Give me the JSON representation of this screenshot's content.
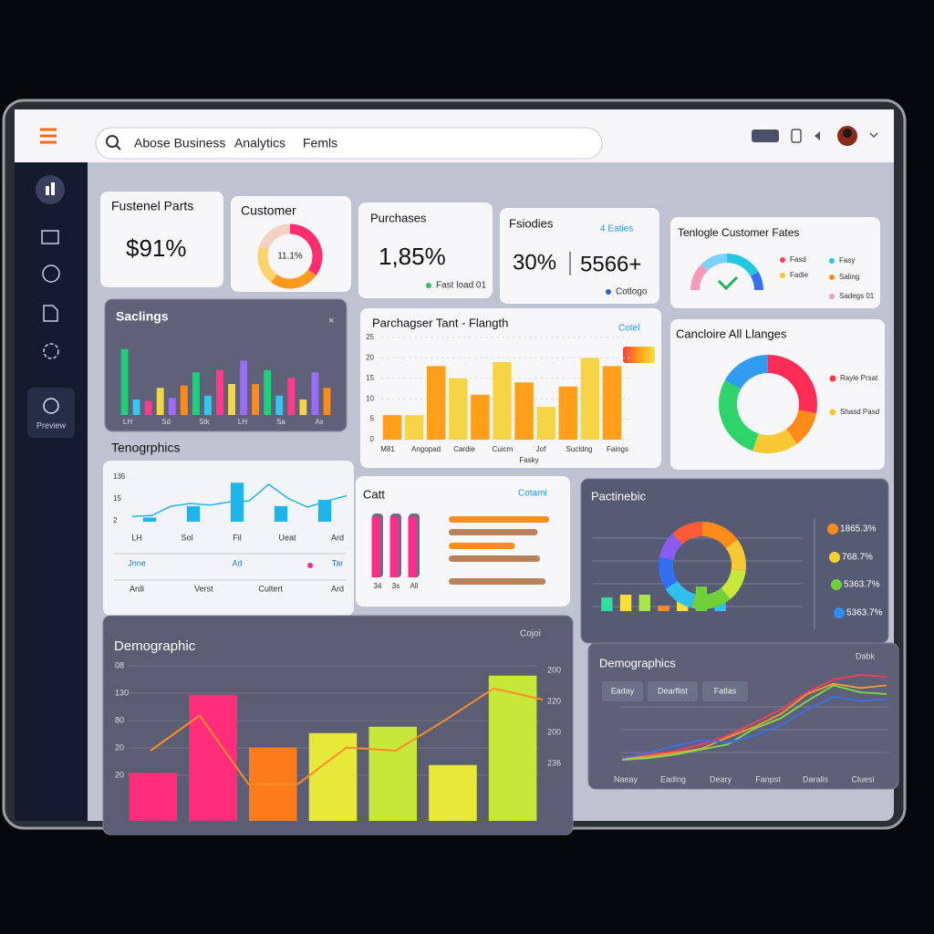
{
  "header": {
    "search": [
      "Abose Business",
      "Analytics",
      "Femls"
    ]
  },
  "sidebar": {
    "label": "Preview"
  },
  "kpis": [
    {
      "title": "Fustenel Parts",
      "value": "$91%"
    },
    {
      "title": "Customer",
      "center": "11.1%",
      "values": [
        35,
        25,
        20,
        20
      ],
      "colors": [
        "#ff2d6f",
        "#ff9a1f",
        "#ffd36b",
        "#f3d2c0"
      ]
    },
    {
      "title": "Purchases",
      "value": "1,85%",
      "note": "Fast load 01"
    },
    {
      "title": "Fsiodies",
      "link": "4 Eaties",
      "value": "30%",
      "value2": "5566+",
      "note": "Cotlogo"
    },
    {
      "title": "Tenlogle Customer Fates",
      "legend": [
        {
          "name": "Fasd",
          "color": "#ff3b6b"
        },
        {
          "name": "Fasy",
          "color": "#22c7e0"
        },
        {
          "name": "Fadie",
          "color": "#f7c833"
        },
        {
          "name": "Saling",
          "color": "#ff8c1a"
        },
        {
          "name": "Sadegs 01",
          "color": "#f59ab8"
        }
      ]
    }
  ],
  "saclings": {
    "title": "Saclings",
    "ylim": [
      0,
      100
    ],
    "values": [
      85,
      20,
      18,
      35,
      22,
      38,
      55,
      25,
      58,
      40,
      70,
      40,
      58,
      25,
      48,
      20,
      55,
      35
    ],
    "colors": [
      "#1fd07a",
      "#34c8f0",
      "#ff3b8b",
      "#f5d547",
      "#9b6cf7",
      "#ff8c1a"
    ],
    "xlabels": [
      "LH",
      "Sd",
      "Stk",
      "LH",
      "Sa",
      "Ax"
    ]
  },
  "purchaser": {
    "title": "Parchagser Tant - Flangth",
    "legend": "Cotel",
    "ylim": [
      0,
      25
    ],
    "yticks": [
      0,
      5,
      10,
      15,
      20,
      25
    ],
    "values": [
      6,
      6,
      18,
      15,
      11,
      19,
      14,
      8,
      13,
      20,
      18
    ],
    "colors": [
      "#ff9f1a",
      "#f5d547"
    ],
    "xlabels": [
      "M81",
      "Angopad",
      "Cardie",
      "Cuicm",
      "Jof",
      "Sucldng",
      "Faings"
    ],
    "xlabel": "Fasky"
  },
  "allranges": {
    "title": "Cancloire All Llanges",
    "values": [
      28,
      12,
      15,
      28,
      17
    ],
    "colors": [
      "#ff2d55",
      "#ff8c1a",
      "#f7c833",
      "#2ed46a",
      "#2f9cf0"
    ],
    "legend": [
      {
        "name": "Rayle Prsat",
        "color": "#ff3b3b"
      },
      {
        "name": "Shasd Pasd",
        "color": "#f7c833"
      }
    ]
  },
  "tenographics": {
    "title": "Tenogrphics",
    "ylabels": [
      "135",
      "15",
      "2"
    ],
    "ylim": [
      0,
      100
    ],
    "line": [
      10,
      12,
      30,
      35,
      32,
      38,
      40,
      72,
      45,
      28,
      40,
      50
    ],
    "bars": [
      8,
      30,
      75,
      30,
      42
    ],
    "color": "#1eb6ea",
    "rows": [
      [
        "LH",
        "Sol",
        "Fil",
        "Ueat",
        "Ard"
      ],
      [
        "Jnne",
        "Ad",
        "Tar"
      ],
      [
        "Ardi",
        "Verst",
        "Cultert",
        "Ard"
      ]
    ]
  },
  "catt": {
    "title": "Catt",
    "legend": "Cotami",
    "ylim": [
      0,
      100
    ],
    "vertical": [
      95,
      95,
      95
    ],
    "vcolor": "#ff2d8a",
    "xlabels": [
      "34",
      "3s",
      "All"
    ],
    "horizontal": [
      88,
      78,
      58,
      80,
      85
    ],
    "hcolors": [
      "#ff8c1a",
      "#b8835a",
      "#ff8c1a",
      "#b8835a",
      "#b8835a"
    ]
  },
  "pactinebic": {
    "title": "Pactinebic",
    "ylim": [
      0,
      100
    ],
    "values": [
      25,
      30,
      30,
      10,
      30,
      45,
      35
    ],
    "colors": [
      "#2ee0a0",
      "#f7e03a",
      "#a6e84a",
      "#ff8c1a",
      "#f7e03a",
      "#6fd13a",
      "#2fc0f0"
    ],
    "donut": [
      15,
      12,
      12,
      15,
      12,
      12,
      10,
      12
    ],
    "donut_colors": [
      "#ff8c1a",
      "#f7c833",
      "#c7e83a",
      "#6fd13a",
      "#2fc0f0",
      "#2f6ff0",
      "#8a5cf0",
      "#ff5a3a"
    ],
    "legend": [
      {
        "name": "1865.3%",
        "color": "#ff8c1a"
      },
      {
        "name": "768.7%",
        "color": "#f7d133"
      },
      {
        "name": "5363.7%",
        "color": "#6fd13a"
      },
      {
        "name": "5363.7%",
        "color": "#2f8ff0"
      }
    ]
  },
  "demographic": {
    "title": "Demographic",
    "menu": "Cojoi",
    "yleft": [
      "08",
      "130",
      "80",
      "20",
      "20"
    ],
    "yright": [
      "200",
      "220",
      "200",
      "236"
    ],
    "ylim": [
      0,
      100
    ],
    "values": [
      30,
      79,
      46,
      55,
      59,
      35,
      91
    ],
    "colors": [
      "#ff2d7a",
      "#ff2d7a",
      "#ff7a1a",
      "#e8e83a",
      "#c7e83a",
      "#e8e83a",
      "#c7e83a"
    ],
    "line": [
      44,
      66,
      23,
      23,
      46,
      44,
      63,
      83,
      76
    ],
    "line_color": "#ff8c2a"
  },
  "demographics": {
    "title": "Demographics",
    "menu": "Dabk",
    "tabs": [
      "Eaday",
      "Dearflist",
      "Fatlas"
    ],
    "xlabels": [
      "Naeay",
      "Eading",
      "Deary",
      "Fanpst",
      "Daralis",
      "Cluesi"
    ],
    "ylim": [
      0,
      100
    ],
    "series": [
      {
        "color": "#ff3b5c",
        "values": [
          5,
          8,
          12,
          20,
          30,
          45,
          60,
          80,
          95,
          100,
          98
        ]
      },
      {
        "color": "#ff9a2a",
        "values": [
          3,
          6,
          10,
          15,
          28,
          40,
          55,
          78,
          90,
          85,
          88
        ]
      },
      {
        "color": "#7adf4a",
        "values": [
          2,
          4,
          8,
          14,
          20,
          38,
          50,
          70,
          88,
          80,
          78
        ]
      },
      {
        "color": "#3a6ff0",
        "values": [
          4,
          10,
          18,
          25,
          22,
          30,
          42,
          60,
          75,
          70,
          72
        ]
      }
    ]
  }
}
